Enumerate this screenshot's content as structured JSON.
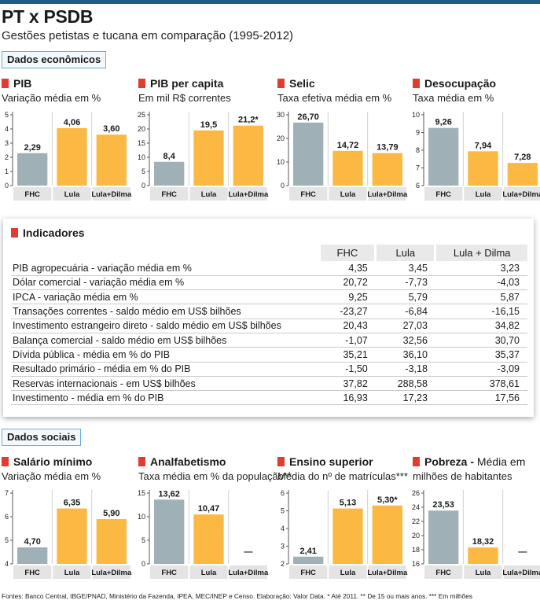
{
  "header": {
    "title": "PT x PSDB",
    "subtitle": "Gestões petistas e tucana em comparação (1995-2012)"
  },
  "sections": {
    "economic": "Dados econômicos",
    "social": "Dados sociais"
  },
  "colors": {
    "fhc": "#9fb1b6",
    "pt": "#fbb843",
    "accent": "#e23c2f",
    "bar_top": "#1f5f86"
  },
  "chart_data": [
    {
      "id": "pib",
      "type": "bar",
      "title": "PIB",
      "subtitle": "Variação média em %",
      "categories": [
        "FHC",
        "Lula",
        "Lula+Dilma"
      ],
      "values": [
        2.29,
        4.06,
        3.6
      ],
      "labels": [
        "2,29",
        "4,06",
        "3,60"
      ],
      "ylim": [
        0,
        5
      ],
      "ticks": [
        "0",
        "1",
        "2",
        "3",
        "4",
        "5"
      ],
      "tick_values": [
        0,
        1,
        2,
        3,
        4,
        5
      ]
    },
    {
      "id": "pib_per_capita",
      "type": "bar",
      "title": "PIB per capita",
      "subtitle": "Em mil R$ correntes",
      "categories": [
        "FHC",
        "Lula",
        "Lula+Dilma"
      ],
      "values": [
        8.4,
        19.5,
        21.2
      ],
      "labels": [
        "8,4",
        "19,5",
        "21,2*"
      ],
      "ylim": [
        0,
        25
      ],
      "ticks": [
        "0",
        "5",
        "10",
        "15",
        "20",
        "25"
      ],
      "tick_values": [
        0,
        5,
        10,
        15,
        20,
        25
      ]
    },
    {
      "id": "selic",
      "type": "bar",
      "title": "Selic",
      "subtitle": "Taxa efetiva média em %",
      "categories": [
        "FHC",
        "Lula",
        "Lula+Dilma"
      ],
      "values": [
        26.7,
        14.72,
        13.79
      ],
      "labels": [
        "26,70",
        "14,72",
        "13,79"
      ],
      "ylim": [
        0,
        30
      ],
      "ticks": [
        "0",
        "10",
        "20",
        "30"
      ],
      "tick_values": [
        0,
        10,
        20,
        30
      ]
    },
    {
      "id": "desocupacao",
      "type": "bar",
      "title": "Desocupação",
      "subtitle": "Taxa média em %",
      "categories": [
        "FHC",
        "Lula",
        "Lula+Dilma"
      ],
      "values": [
        9.26,
        7.94,
        7.28
      ],
      "labels": [
        "9,26",
        "7,94",
        "7,28"
      ],
      "ylim": [
        6,
        10
      ],
      "ticks": [
        "6",
        "7",
        "8",
        "9",
        "10"
      ],
      "tick_values": [
        6,
        7,
        8,
        9,
        10
      ]
    },
    {
      "id": "salario_minimo",
      "type": "bar",
      "title": "Salário mínimo",
      "subtitle": "Variação média em %",
      "categories": [
        "FHC",
        "Lula",
        "Lula+Dilma"
      ],
      "values": [
        4.7,
        6.35,
        5.9
      ],
      "labels": [
        "4,70",
        "6,35",
        "5,90"
      ],
      "ylim": [
        4,
        7
      ],
      "ticks": [
        "4",
        "5",
        "6",
        "7"
      ],
      "tick_values": [
        4,
        5,
        6,
        7
      ]
    },
    {
      "id": "analfabetismo",
      "type": "bar",
      "title": "Analfabetismo",
      "subtitle": "Taxa média em % da população**",
      "categories": [
        "FHC",
        "Lula",
        "Lula+Dilma"
      ],
      "values": [
        13.62,
        10.47,
        null
      ],
      "labels": [
        "13,62",
        "10,47",
        "—"
      ],
      "ylim": [
        0,
        15
      ],
      "ticks": [
        "0",
        "5",
        "10",
        "15"
      ],
      "tick_values": [
        0,
        5,
        10,
        15
      ]
    },
    {
      "id": "ensino_superior",
      "type": "bar",
      "title": "Ensino superior",
      "subtitle": "Média do nº de matrículas***",
      "categories": [
        "FHC",
        "Lula",
        "Lula+Dilma"
      ],
      "values": [
        2.41,
        5.13,
        5.3
      ],
      "labels": [
        "2,41",
        "5,13",
        "5,30*"
      ],
      "ylim": [
        2,
        6
      ],
      "ticks": [
        "2",
        "3",
        "4",
        "5",
        "6"
      ],
      "tick_values": [
        2,
        3,
        4,
        5,
        6
      ]
    },
    {
      "id": "pobreza",
      "type": "bar",
      "title": "Pobreza -",
      "title_rest": "Média em",
      "subtitle": "milhões de habitantes",
      "categories": [
        "FHC",
        "Lula",
        "Lula+Dilma"
      ],
      "values": [
        23.53,
        18.32,
        null
      ],
      "labels": [
        "23,53",
        "18,32",
        "—"
      ],
      "ylim": [
        16,
        26
      ],
      "ticks": [
        "16",
        "18",
        "20",
        "22",
        "24",
        "26"
      ],
      "tick_values": [
        16,
        18,
        20,
        22,
        24,
        26
      ]
    }
  ],
  "indicators": {
    "title": "Indicadores",
    "columns": [
      "FHC",
      "Lula",
      "Lula + Dilma"
    ],
    "rows": [
      {
        "label": "PIB agropecuária - variação média em %",
        "values": [
          "4,35",
          "3,45",
          "3,23"
        ]
      },
      {
        "label": "Dólar comercial - variação média em %",
        "values": [
          "20,72",
          "-7,73",
          "-4,03"
        ]
      },
      {
        "label": "IPCA - variação média em %",
        "values": [
          "9,25",
          "5,79",
          "5,87"
        ]
      },
      {
        "label": "Transações correntes - saldo médio em US$ bilhões",
        "values": [
          "-23,27",
          "-6,84",
          "-16,15"
        ]
      },
      {
        "label": "Investimento estrangeiro direto - saldo médio em US$ bilhões",
        "values": [
          "20,43",
          "27,03",
          "34,82"
        ]
      },
      {
        "label": "Balança comercial - saldo médio em US$ bilhões",
        "values": [
          "-1,07",
          "32,56",
          "30,70"
        ]
      },
      {
        "label": "Dívida pública - média em % do PIB",
        "values": [
          "35,21",
          "36,10",
          "35,37"
        ]
      },
      {
        "label": "Resultado primário - média em % do PIB",
        "values": [
          "-1,50",
          "-3,18",
          "-3,09"
        ]
      },
      {
        "label": "Reservas internacionais - em US$ bilhões",
        "values": [
          "37,82",
          "288,58",
          "378,61"
        ]
      },
      {
        "label": "Investimento - média em % do PIB",
        "values": [
          "16,93",
          "17,23",
          "17,56"
        ]
      }
    ]
  },
  "footer": "Fontes: Banco Central, IBGE/PNAD, Ministério da Fazenda, IPEA, MEC/INEP e Censo. Elaboração: Valor Data. * Até 2011. ** De 15 ou mais anos. *** Em milhões"
}
